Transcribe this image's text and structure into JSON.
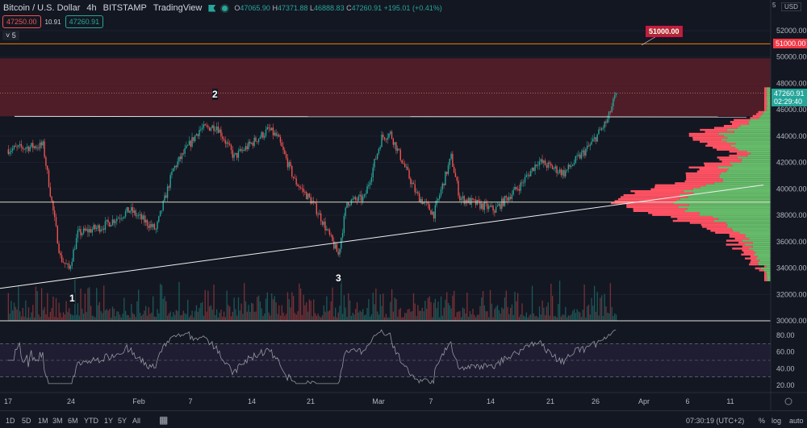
{
  "header": {
    "title": "Bitcoin / U.S. Dollar",
    "interval": "4h",
    "exchange": "BITSTAMP",
    "source": "TradingView",
    "open_label": "O",
    "open": "47065.90",
    "high_label": "H",
    "high": "47371.88",
    "low_label": "L",
    "low": "46888.83",
    "close_label": "C",
    "close": "47260.91",
    "change": "+195.01 (+0.41%)",
    "bid": "47250.00",
    "spread": "10.91",
    "ask": "47260.91",
    "indicators_toggle": "5"
  },
  "price_axis": {
    "currency": "USD",
    "top_label": "5",
    "last_price": "47260.91",
    "countdown": "02:29:40",
    "alert_price": "51000.00"
  },
  "alert_callout": "51000.00",
  "annotations": [
    "1",
    "2",
    "3"
  ],
  "bottom_bar": {
    "ranges": [
      "1D",
      "5D",
      "1M",
      "3M",
      "6M",
      "YTD",
      "1Y",
      "5Y",
      "All"
    ],
    "time": "07:30:19 (UTC+2)",
    "percent": "%",
    "log": "log",
    "auto": "auto"
  },
  "colors": {
    "up": "#26a69a",
    "down": "#ef5350",
    "zone": "#5a1f28",
    "alert": "#f57c00",
    "profile_up": "#66bb6a",
    "profile_down": "#ff5263",
    "rsi": "#9598a1"
  },
  "chart_data": {
    "type": "candlestick",
    "x_ticks": [
      "17",
      "24",
      "Feb",
      "7",
      "14",
      "21",
      "Mar",
      "7",
      "14",
      "21",
      "26",
      "Apr",
      "6",
      "11"
    ],
    "y_ticks": [
      30000,
      32000,
      34000,
      36000,
      38000,
      40000,
      42000,
      44000,
      46000,
      48000,
      50000,
      52000
    ],
    "ylim": [
      30000,
      52000
    ],
    "path": [
      [
        "2022-01-17",
        43000
      ],
      [
        "2022-01-21",
        43300
      ],
      [
        "2022-01-22",
        39000
      ],
      [
        "2022-01-23",
        34800
      ],
      [
        "2022-01-24",
        33900
      ],
      [
        "2022-01-25",
        36600
      ],
      [
        "2022-01-28",
        37200
      ],
      [
        "2022-01-31",
        38400
      ],
      [
        "2022-02-03",
        36900
      ],
      [
        "2022-02-05",
        41500
      ],
      [
        "2022-02-08",
        44500
      ],
      [
        "2022-02-10",
        44800
      ],
      [
        "2022-02-12",
        42400
      ],
      [
        "2022-02-16",
        44500
      ],
      [
        "2022-02-17",
        43900
      ],
      [
        "2022-02-19",
        40600
      ],
      [
        "2022-02-21",
        39000
      ],
      [
        "2022-02-22",
        37800
      ],
      [
        "2022-02-24",
        35000
      ],
      [
        "2022-02-25",
        39000
      ],
      [
        "2022-02-27",
        39300
      ],
      [
        "2022-03-01",
        43900
      ],
      [
        "2022-03-02",
        44200
      ],
      [
        "2022-03-05",
        39600
      ],
      [
        "2022-03-07",
        38100
      ],
      [
        "2022-03-09",
        42400
      ],
      [
        "2022-03-10",
        39300
      ],
      [
        "2022-03-14",
        38400
      ],
      [
        "2022-03-17",
        40300
      ],
      [
        "2022-03-19",
        42100
      ],
      [
        "2022-03-22",
        41200
      ],
      [
        "2022-03-25",
        43300
      ],
      [
        "2022-03-27",
        45200
      ],
      [
        "2022-03-28",
        47260.91
      ]
    ],
    "resistance_zone": [
      45500,
      49900
    ],
    "horizontal_levels": [
      51000,
      45500,
      39000
    ],
    "trendline": [
      [
        "2022-01-16",
        32450
      ],
      [
        "2022-04-14",
        40300
      ]
    ],
    "rsi": {
      "y_ticks": [
        20,
        40,
        60,
        80
      ],
      "bands": [
        30,
        70
      ]
    }
  }
}
